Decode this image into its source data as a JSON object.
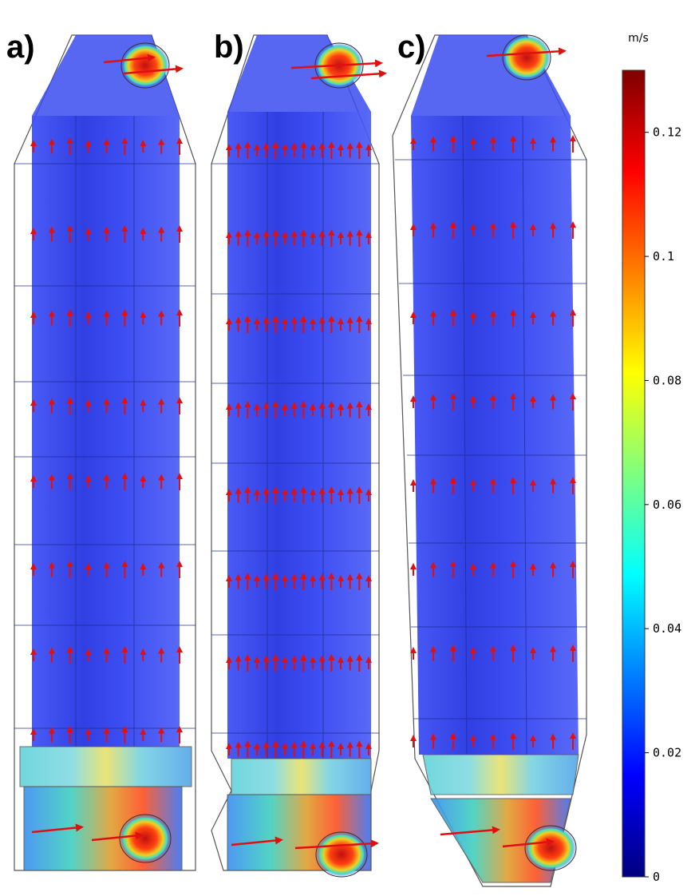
{
  "panels": [
    {
      "label": "a)"
    },
    {
      "label": "b)"
    },
    {
      "label": "c)"
    }
  ],
  "colorbar": {
    "unit": "m/s",
    "min": 0,
    "max": 0.13,
    "ticks": [
      {
        "value": 0,
        "label": "0"
      },
      {
        "value": 0.02,
        "label": "0.02"
      },
      {
        "value": 0.04,
        "label": "0.04"
      },
      {
        "value": 0.06,
        "label": "0.06"
      },
      {
        "value": 0.08,
        "label": "0.08"
      },
      {
        "value": 0.1,
        "label": "0.1"
      },
      {
        "value": 0.12,
        "label": "0.12"
      }
    ],
    "colormap": [
      "#00007f",
      "#0000ff",
      "#007fff",
      "#00ffff",
      "#7fff7f",
      "#ffff00",
      "#ff7f00",
      "#ff0000",
      "#7f0000"
    ]
  },
  "colors": {
    "column_fill": "#2a3cf0",
    "vector_arrow": "#e01010",
    "outline": "#555555"
  }
}
